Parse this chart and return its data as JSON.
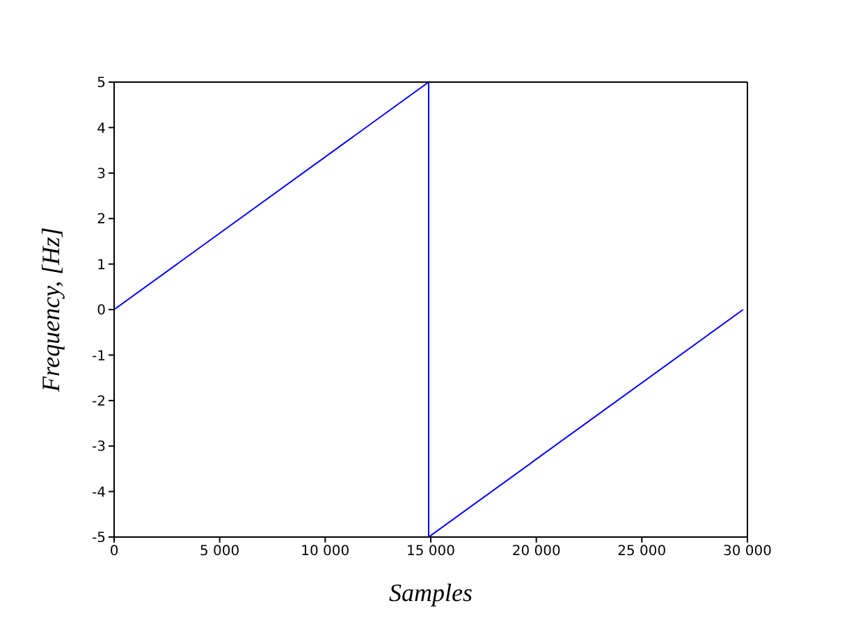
{
  "chart_data": {
    "type": "line",
    "xlabel": "Samples",
    "ylabel": "Frequency, [Hz]",
    "x": [
      0,
      14900,
      14900,
      29800
    ],
    "series": [
      {
        "color": "#0000ff",
        "values": [
          0,
          5,
          -5,
          0
        ]
      }
    ],
    "xlim": [
      0,
      30000
    ],
    "xticks": [
      0,
      {
        "value": 5000,
        "label": "5 000"
      },
      {
        "value": 10000,
        "label": "10 000"
      },
      {
        "value": 15000,
        "label": "15 000"
      },
      {
        "value": 20000,
        "label": "20 000"
      },
      {
        "value": 25000,
        "label": "25 000"
      },
      {
        "value": 30000,
        "label": "30 000"
      }
    ],
    "ylim": [
      -5,
      5
    ],
    "yticks": [
      -5,
      -4,
      -3,
      -2,
      -1,
      0,
      1,
      2,
      3,
      4,
      5
    ],
    "grid": false,
    "legend": false,
    "marker": "none",
    "line_style": "solid"
  }
}
